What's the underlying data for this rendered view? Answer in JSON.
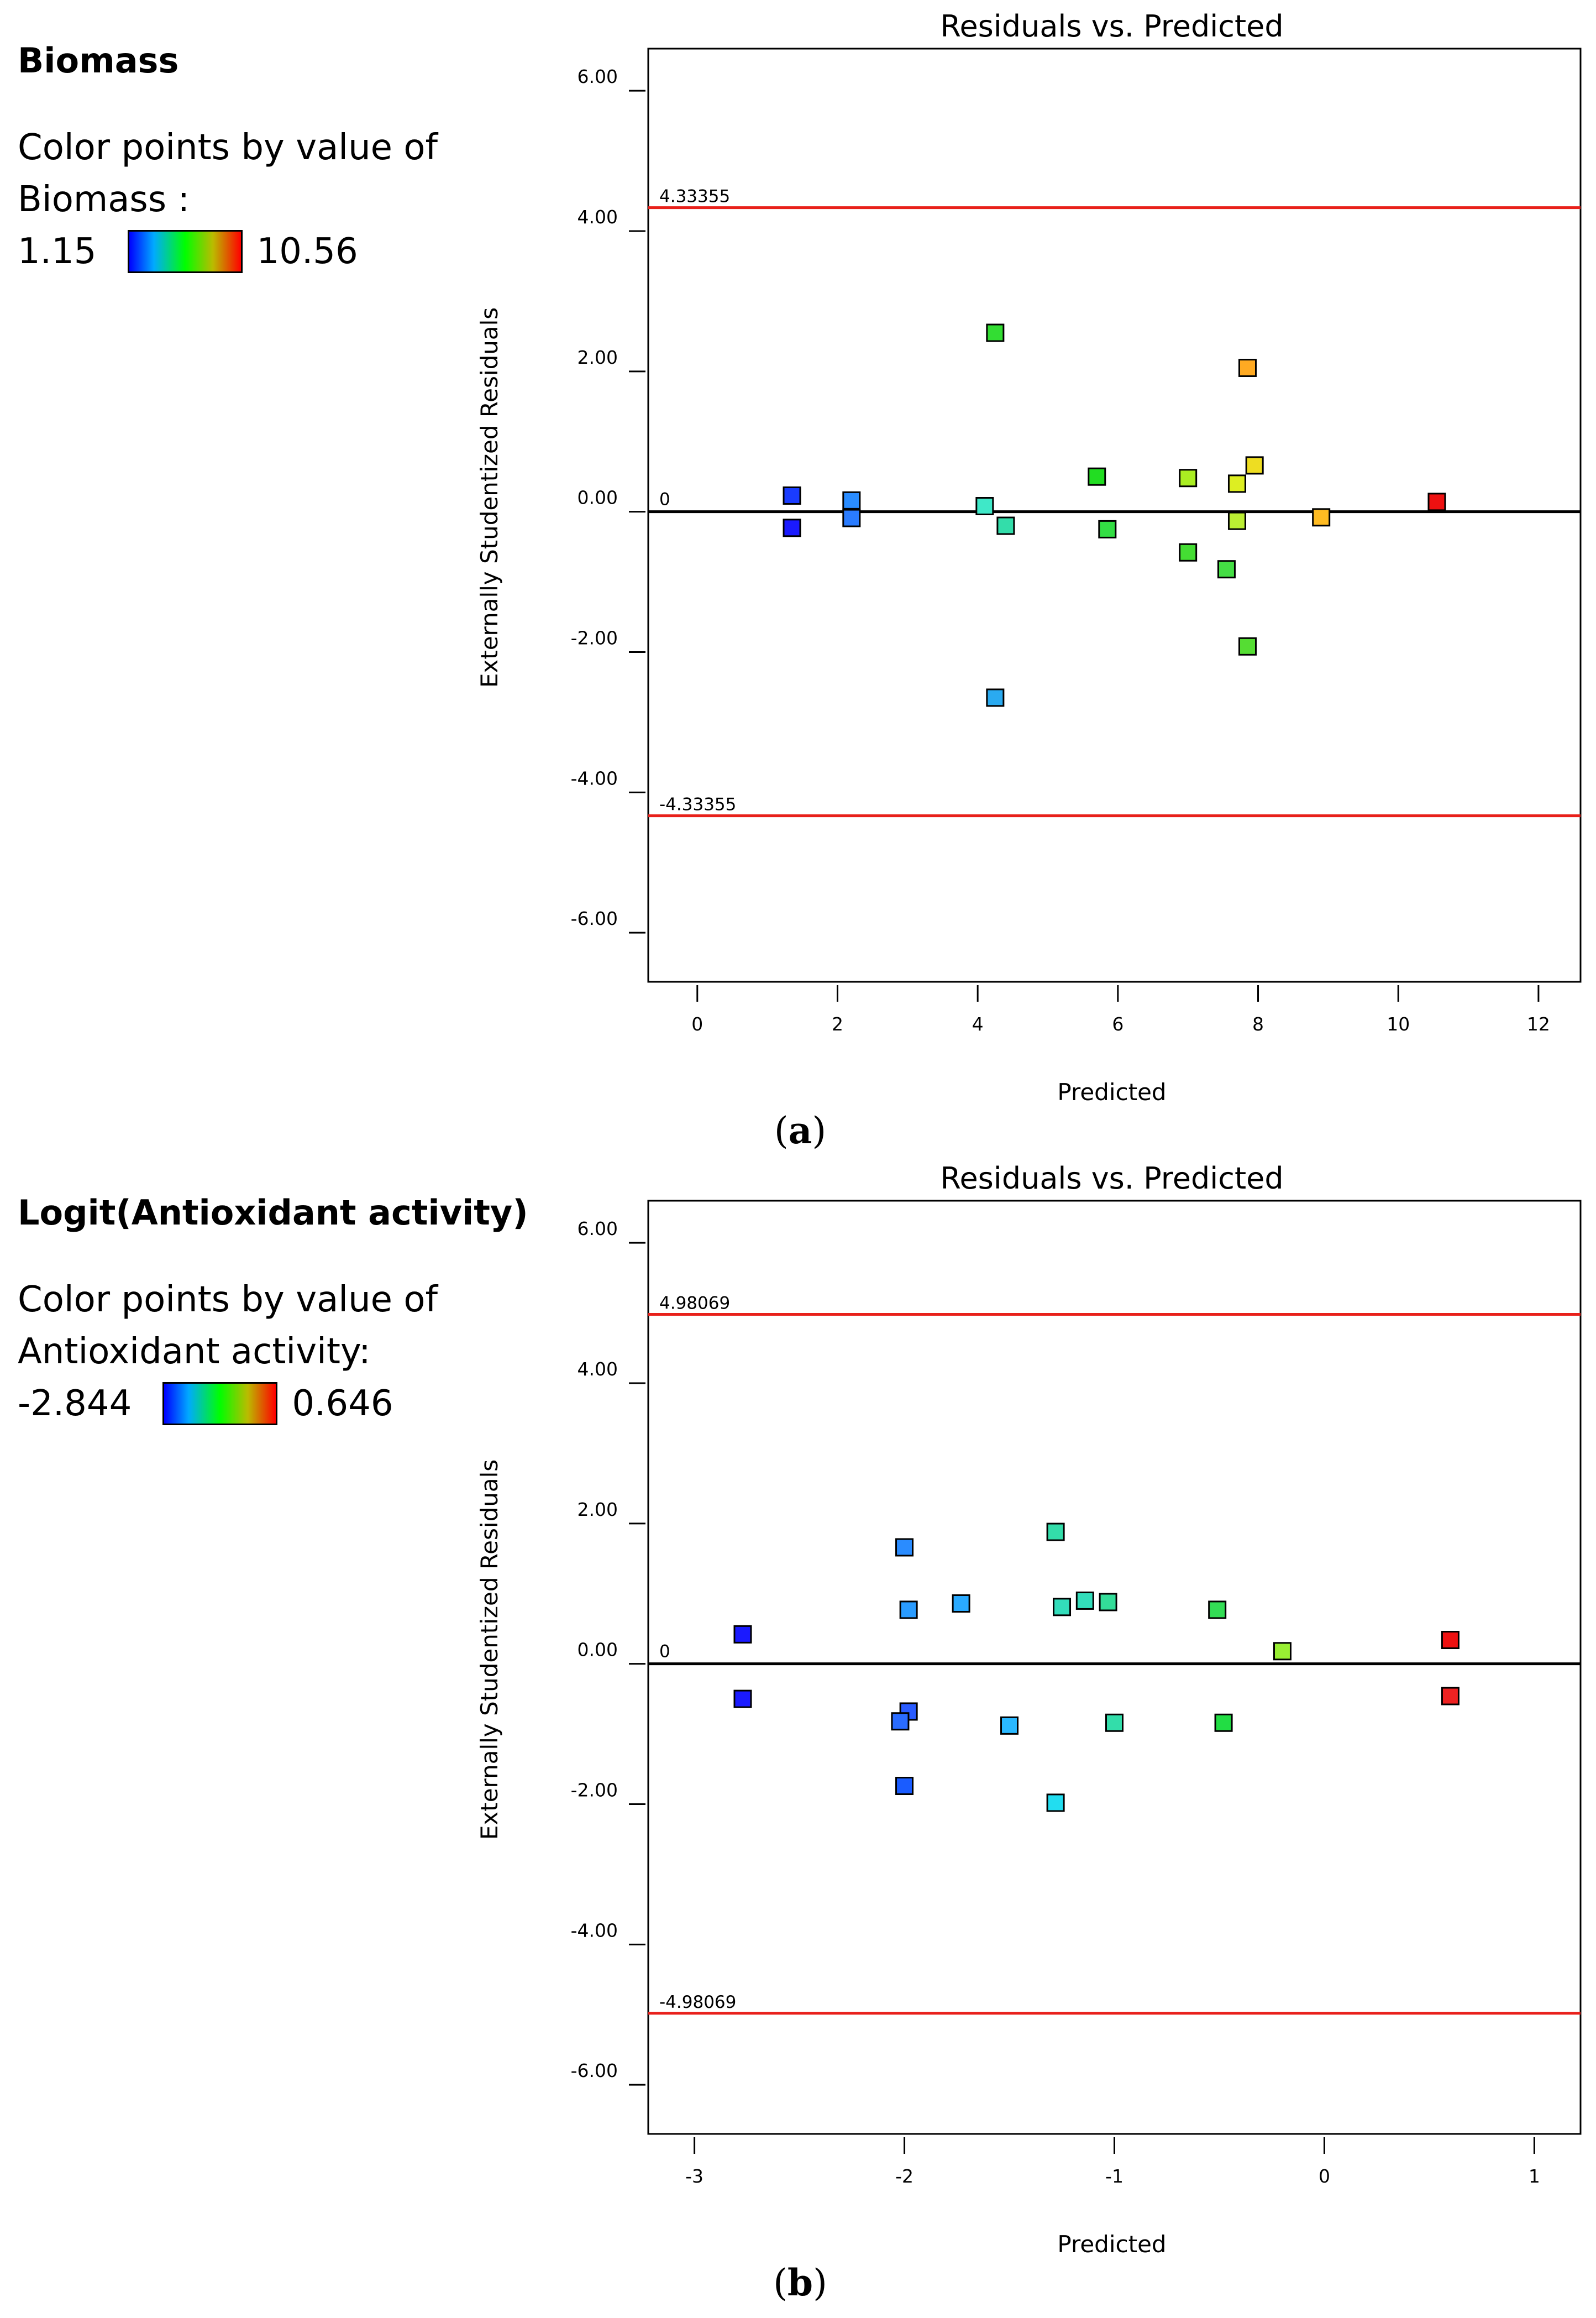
{
  "chart_data": [
    {
      "type": "scatter",
      "title": "Residuals vs. Predicted",
      "xlabel": "Predicted",
      "ylabel": "Externally Studentized Residuals",
      "panel_label": "a",
      "legend": {
        "heading": "Biomass",
        "line1": "Color points by value of",
        "line2": "Biomass :",
        "min_label": "1.15",
        "max_label": "10.56"
      },
      "xlim": [
        -0.7,
        12.6
      ],
      "ylim": [
        -6.7,
        6.6
      ],
      "x_ticks": [
        0,
        2,
        4,
        6,
        8,
        10,
        12
      ],
      "x_tick_labels": [
        "0",
        "2",
        "4",
        "6",
        "8",
        "10",
        "12"
      ],
      "y_ticks": [
        6,
        4,
        2,
        0,
        -2,
        -4,
        -6
      ],
      "y_tick_labels": [
        "6.00",
        "4.00",
        "2.00",
        "0.00",
        "-2.00",
        "-4.00",
        "-6.00"
      ],
      "ref_lines": {
        "upper": 4.33355,
        "upper_label": "4.33355",
        "lower": -4.33355,
        "lower_label": "-4.33355",
        "zero_label": "0"
      },
      "points": [
        {
          "x": 1.35,
          "y": 0.23,
          "color": "#1a3cff"
        },
        {
          "x": 1.35,
          "y": -0.23,
          "color": "#1a1aff"
        },
        {
          "x": 2.2,
          "y": 0.16,
          "color": "#2a8cff"
        },
        {
          "x": 2.2,
          "y": -0.09,
          "color": "#2a7cff"
        },
        {
          "x": 4.1,
          "y": 0.08,
          "color": "#3fe8c8"
        },
        {
          "x": 4.25,
          "y": 2.55,
          "color": "#33dd33"
        },
        {
          "x": 4.25,
          "y": -2.65,
          "color": "#2aaaf0"
        },
        {
          "x": 4.4,
          "y": -0.2,
          "color": "#33ddaa"
        },
        {
          "x": 5.7,
          "y": 0.5,
          "color": "#22dd22"
        },
        {
          "x": 5.85,
          "y": -0.25,
          "color": "#33dd44"
        },
        {
          "x": 7.0,
          "y": 0.48,
          "color": "#aaee22"
        },
        {
          "x": 7.0,
          "y": -0.58,
          "color": "#44dd33"
        },
        {
          "x": 7.55,
          "y": -0.82,
          "color": "#44dd44"
        },
        {
          "x": 7.7,
          "y": 0.4,
          "color": "#ddee22"
        },
        {
          "x": 7.7,
          "y": -0.13,
          "color": "#bbee33"
        },
        {
          "x": 7.85,
          "y": 2.05,
          "color": "#ffaa22"
        },
        {
          "x": 7.85,
          "y": -1.92,
          "color": "#55dd33"
        },
        {
          "x": 7.95,
          "y": 0.66,
          "color": "#eedd22"
        },
        {
          "x": 8.9,
          "y": -0.08,
          "color": "#ffbb22"
        },
        {
          "x": 10.55,
          "y": 0.14,
          "color": "#ee1111"
        }
      ]
    },
    {
      "type": "scatter",
      "title": "Residuals vs. Predicted",
      "xlabel": "Predicted",
      "ylabel": "Externally Studentized Residuals",
      "panel_label": "b",
      "legend": {
        "heading": "Logit(Antioxidant activity)",
        "line1": "Color points by value of",
        "line2": "Antioxidant activity:",
        "min_label": "-2.844",
        "max_label": "0.646"
      },
      "xlim": [
        -3.22,
        1.22
      ],
      "ylim": [
        -6.7,
        6.6
      ],
      "x_ticks": [
        -3,
        -2,
        -1,
        0,
        1
      ],
      "x_tick_labels": [
        "-3",
        "-2",
        "-1",
        "0",
        "1"
      ],
      "y_ticks": [
        6,
        4,
        2,
        0,
        -2,
        -4,
        -6
      ],
      "y_tick_labels": [
        "6.00",
        "4.00",
        "2.00",
        "0.00",
        "-2.00",
        "-4.00",
        "-6.00"
      ],
      "ref_lines": {
        "upper": 4.98069,
        "upper_label": "4.98069",
        "lower": -4.98069,
        "lower_label": "-4.98069",
        "zero_label": "0"
      },
      "points": [
        {
          "x": -2.77,
          "y": 0.42,
          "color": "#1a1aff"
        },
        {
          "x": -2.77,
          "y": -0.5,
          "color": "#1a1aff"
        },
        {
          "x": -2.0,
          "y": 1.66,
          "color": "#2a8cff"
        },
        {
          "x": -1.98,
          "y": 0.77,
          "color": "#2a9cff"
        },
        {
          "x": -1.98,
          "y": -0.68,
          "color": "#2a5cff"
        },
        {
          "x": -2.02,
          "y": -0.82,
          "color": "#2a6cff"
        },
        {
          "x": -2.0,
          "y": -1.74,
          "color": "#1a5cff"
        },
        {
          "x": -1.73,
          "y": 0.86,
          "color": "#2aaaff"
        },
        {
          "x": -1.5,
          "y": -0.88,
          "color": "#2ab8ff"
        },
        {
          "x": -1.28,
          "y": 1.88,
          "color": "#33ddaa"
        },
        {
          "x": -1.25,
          "y": 0.81,
          "color": "#33ddbb"
        },
        {
          "x": -1.28,
          "y": -1.98,
          "color": "#22ddf0"
        },
        {
          "x": -1.14,
          "y": 0.9,
          "color": "#33ddbb"
        },
        {
          "x": -1.03,
          "y": 0.88,
          "color": "#33dd99"
        },
        {
          "x": -1.0,
          "y": -0.84,
          "color": "#33ddaa"
        },
        {
          "x": -0.51,
          "y": 0.77,
          "color": "#33dd55"
        },
        {
          "x": -0.48,
          "y": -0.84,
          "color": "#22dd44"
        },
        {
          "x": -0.2,
          "y": 0.18,
          "color": "#99ee33"
        },
        {
          "x": 0.6,
          "y": 0.34,
          "color": "#ee1111"
        },
        {
          "x": 0.6,
          "y": -0.46,
          "color": "#ee2222"
        }
      ]
    }
  ]
}
